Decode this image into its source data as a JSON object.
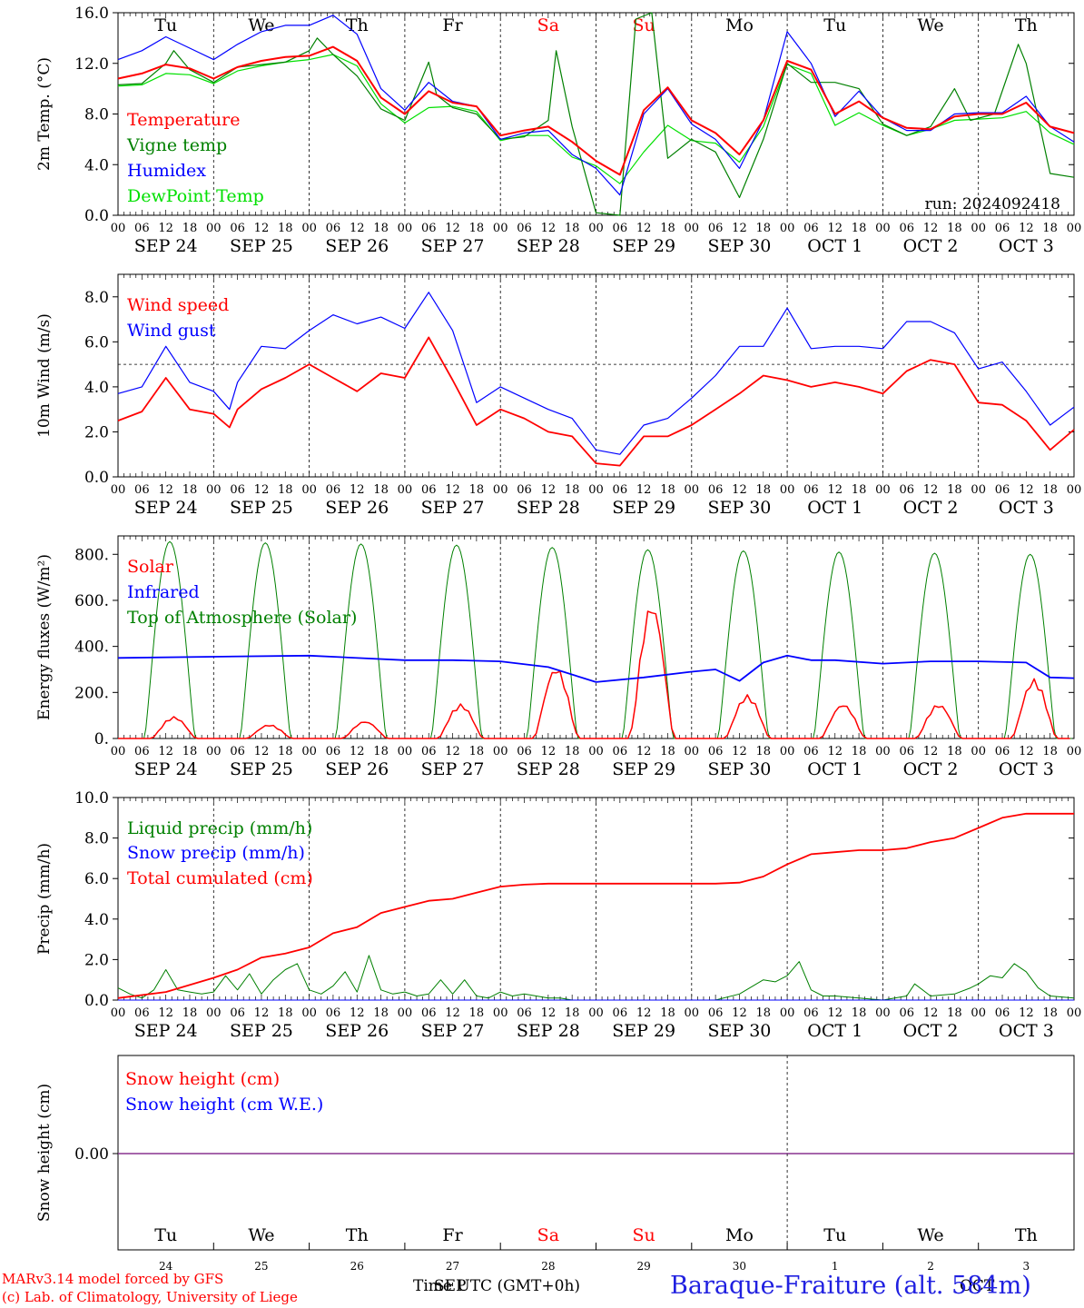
{
  "run_label": "run: 2024092418",
  "date_labels": [
    "SEP 24",
    "SEP 25",
    "SEP 26",
    "SEP 27",
    "SEP 28",
    "SEP 29",
    "SEP 30",
    "OCT  1",
    "OCT  2",
    "OCT  3"
  ],
  "hour_ticks": [
    "00",
    "06",
    "12",
    "18"
  ],
  "weekdays": [
    {
      "label": "Tu",
      "color": "#000000"
    },
    {
      "label": "We",
      "color": "#000000"
    },
    {
      "label": "Th",
      "color": "#000000"
    },
    {
      "label": "Fr",
      "color": "#000000"
    },
    {
      "label": "Sa",
      "color": "#ff0000"
    },
    {
      "label": "Su",
      "color": "#ff0000"
    },
    {
      "label": "Mo",
      "color": "#000000"
    },
    {
      "label": "Tu",
      "color": "#000000"
    },
    {
      "label": "We",
      "color": "#000000"
    },
    {
      "label": "Th",
      "color": "#000000"
    }
  ],
  "bottom_day_numbers": [
    "24",
    "25",
    "26",
    "27",
    "28",
    "29",
    "30",
    "1",
    "2",
    "3"
  ],
  "footer": {
    "credit_line1": "MARv3.14 model forced by GFS",
    "credit_line2": "(c) Lab. of Climatology, University of Liege",
    "xaxis_label": "Time UTC (GMT+0h)",
    "xaxis_month_left": "SEP",
    "xaxis_month_right": "OCT",
    "station": "Baraque-Fraiture (alt. 584m)"
  },
  "chart_data": [
    {
      "type": "line",
      "ylabel": "2m Temp. (°C)",
      "ylim": [
        0,
        16
      ],
      "yticks": [
        "0.0",
        "4.0",
        "8.0",
        "12.0",
        "16.0"
      ],
      "x_unit": "hours since SEP 24 00 UTC",
      "series": [
        {
          "name": "Temperature",
          "color": "#ff0000",
          "x": [
            0,
            6,
            12,
            18,
            24,
            30,
            36,
            42,
            48,
            54,
            60,
            66,
            72,
            78,
            84,
            90,
            96,
            102,
            108,
            114,
            120,
            126,
            132,
            138,
            144,
            150,
            156,
            162,
            168,
            174,
            180,
            186,
            192,
            198,
            204,
            210,
            216,
            222,
            228,
            234,
            240
          ],
          "y": [
            10.8,
            11.2,
            11.9,
            11.6,
            10.8,
            11.7,
            12.2,
            12.5,
            12.6,
            13.3,
            12.2,
            9.3,
            8.0,
            9.8,
            8.9,
            8.6,
            6.3,
            6.7,
            7.0,
            5.8,
            4.3,
            3.2,
            8.3,
            10.1,
            7.5,
            6.5,
            4.8,
            7.5,
            12.2,
            11.5,
            8.0,
            9.0,
            7.7,
            6.9,
            6.8,
            7.8,
            8.0,
            8.0,
            8.9,
            7.0,
            6.5
          ]
        },
        {
          "name": "Vigne temp",
          "color": "#008000",
          "x": [
            0,
            6,
            12,
            14,
            18,
            24,
            30,
            36,
            42,
            48,
            50,
            54,
            60,
            66,
            72,
            78,
            80,
            84,
            90,
            96,
            102,
            108,
            110,
            114,
            120,
            126,
            130,
            134,
            138,
            144,
            150,
            156,
            162,
            168,
            174,
            180,
            186,
            192,
            198,
            204,
            210,
            214,
            220,
            226,
            228,
            234,
            240
          ],
          "y": [
            10.3,
            10.4,
            12.0,
            13.0,
            11.5,
            10.5,
            11.7,
            11.9,
            12.1,
            13.0,
            14.0,
            12.7,
            11.0,
            8.4,
            7.5,
            12.1,
            9.5,
            8.5,
            8.0,
            6.0,
            6.2,
            7.5,
            13.0,
            7.0,
            0.2,
            0.0,
            15.5,
            16.0,
            4.5,
            6.0,
            5.0,
            1.4,
            6.0,
            12.0,
            10.5,
            10.5,
            10.0,
            7.2,
            6.3,
            7.0,
            10.0,
            7.5,
            8.0,
            13.5,
            12.0,
            3.3,
            3.0
          ]
        },
        {
          "name": "Humidex",
          "color": "#0000ff",
          "x": [
            0,
            6,
            12,
            18,
            24,
            30,
            36,
            42,
            48,
            54,
            60,
            66,
            72,
            78,
            84,
            90,
            96,
            102,
            108,
            114,
            120,
            126,
            132,
            138,
            144,
            150,
            156,
            162,
            168,
            174,
            180,
            186,
            192,
            198,
            204,
            210,
            216,
            222,
            228,
            234,
            240
          ],
          "y": [
            12.3,
            13.0,
            14.1,
            13.2,
            12.3,
            13.5,
            14.5,
            15.0,
            15.0,
            15.8,
            14.3,
            10.0,
            8.3,
            10.5,
            9.0,
            8.6,
            6.0,
            6.5,
            6.7,
            4.8,
            3.7,
            1.6,
            8.0,
            10.0,
            7.2,
            6.0,
            3.7,
            7.5,
            14.5,
            12.0,
            7.8,
            9.8,
            7.7,
            6.7,
            6.7,
            8.0,
            8.1,
            8.1,
            9.4,
            7.0,
            5.8
          ]
        },
        {
          "name": "DewPoint Temp",
          "color": "#00e000",
          "x": [
            0,
            6,
            12,
            18,
            24,
            30,
            36,
            42,
            48,
            54,
            60,
            66,
            72,
            78,
            84,
            90,
            96,
            102,
            108,
            114,
            120,
            126,
            132,
            138,
            144,
            150,
            156,
            162,
            168,
            174,
            180,
            186,
            192,
            198,
            204,
            210,
            216,
            222,
            228,
            234,
            240
          ],
          "y": [
            10.2,
            10.3,
            11.2,
            11.1,
            10.4,
            11.4,
            11.8,
            12.1,
            12.3,
            12.7,
            11.8,
            8.8,
            7.3,
            8.5,
            8.6,
            8.2,
            5.9,
            6.3,
            6.3,
            4.6,
            3.9,
            2.5,
            5.0,
            7.1,
            5.9,
            5.7,
            4.2,
            7.0,
            11.9,
            11.2,
            7.1,
            8.1,
            7.1,
            6.3,
            6.8,
            7.5,
            7.6,
            7.7,
            8.2,
            6.5,
            5.6
          ]
        }
      ],
      "show_run_label": true
    },
    {
      "type": "line",
      "ylabel": "10m Wind (m/s)",
      "ylim": [
        0,
        9
      ],
      "yticks": [
        "0.0",
        "2.0",
        "4.0",
        "6.0",
        "8.0"
      ],
      "reference_line": 5,
      "series": [
        {
          "name": "Wind speed",
          "color": "#ff0000",
          "x": [
            0,
            6,
            12,
            18,
            24,
            28,
            30,
            36,
            42,
            48,
            54,
            60,
            66,
            72,
            78,
            84,
            90,
            96,
            102,
            108,
            114,
            120,
            126,
            132,
            138,
            144,
            150,
            156,
            162,
            168,
            174,
            180,
            186,
            192,
            198,
            204,
            210,
            216,
            222,
            228,
            234,
            240
          ],
          "y": [
            2.5,
            2.9,
            4.4,
            3.0,
            2.8,
            2.2,
            3.0,
            3.9,
            4.4,
            5.0,
            4.4,
            3.8,
            4.6,
            4.4,
            6.2,
            4.3,
            2.3,
            3.0,
            2.6,
            2.0,
            1.8,
            0.6,
            0.5,
            1.8,
            1.8,
            2.3,
            3.0,
            3.7,
            4.5,
            4.3,
            4.0,
            4.2,
            4.0,
            3.7,
            4.7,
            5.2,
            5.0,
            3.3,
            3.2,
            2.5,
            1.2,
            2.1
          ]
        },
        {
          "name": "Wind gust",
          "color": "#0000ff",
          "x": [
            0,
            6,
            12,
            18,
            24,
            28,
            30,
            36,
            42,
            48,
            54,
            60,
            66,
            72,
            78,
            84,
            90,
            96,
            102,
            108,
            114,
            120,
            126,
            132,
            138,
            144,
            150,
            156,
            162,
            168,
            174,
            180,
            186,
            192,
            198,
            204,
            210,
            216,
            222,
            228,
            234,
            240
          ],
          "y": [
            3.7,
            4.0,
            5.8,
            4.2,
            3.8,
            3.0,
            4.2,
            5.8,
            5.7,
            6.5,
            7.2,
            6.8,
            7.1,
            6.6,
            8.2,
            6.5,
            3.3,
            4.0,
            3.5,
            3.0,
            2.6,
            1.2,
            1.0,
            2.3,
            2.6,
            3.5,
            4.5,
            5.8,
            5.8,
            7.5,
            5.7,
            5.8,
            5.8,
            5.7,
            6.9,
            6.9,
            6.4,
            4.8,
            5.1,
            3.8,
            2.3,
            3.1
          ]
        }
      ]
    },
    {
      "type": "line",
      "ylabel": "Energy fluxes (W/m²)",
      "ylim": [
        0,
        880
      ],
      "yticks": [
        "0.",
        "200.",
        "400.",
        "600.",
        "800."
      ],
      "series": [
        {
          "name": "Solar",
          "color": "#ff0000",
          "daily_peak_hour": 14,
          "daily_peaks": [
            95,
            60,
            75,
            150,
            310,
            590,
            190,
            150,
            150,
            260
          ],
          "peak_values_in_order": [
            95,
            60,
            75,
            150,
            310,
            590,
            190,
            150,
            150,
            260
          ]
        },
        {
          "name": "Infrared",
          "color": "#0000ff",
          "x": [
            0,
            24,
            48,
            72,
            84,
            96,
            108,
            120,
            132,
            144,
            150,
            156,
            162,
            168,
            174,
            180,
            192,
            204,
            216,
            228,
            234,
            240
          ],
          "y": [
            350,
            355,
            360,
            340,
            340,
            335,
            310,
            245,
            265,
            290,
            300,
            250,
            330,
            360,
            340,
            340,
            325,
            335,
            335,
            330,
            265,
            262
          ]
        },
        {
          "name": "Top of Atmosphere (Solar)",
          "color": "#008000",
          "daily_peak_hour": 13,
          "daily_peaks": [
            855,
            850,
            845,
            840,
            830,
            820,
            815,
            810,
            805,
            800
          ]
        }
      ]
    },
    {
      "type": "line",
      "ylabel": "Precip (mm/h)",
      "ylim": [
        0,
        10
      ],
      "yticks": [
        "0.0",
        "2.0",
        "4.0",
        "6.0",
        "8.0",
        "10.0"
      ],
      "series": [
        {
          "name": "Liquid precip (mm/h)",
          "color": "#008000",
          "x": [
            0,
            3,
            6,
            9,
            12,
            15,
            18,
            21,
            24,
            27,
            30,
            33,
            36,
            39,
            42,
            45,
            48,
            51,
            54,
            57,
            60,
            63,
            66,
            69,
            72,
            75,
            78,
            81,
            84,
            87,
            90,
            93,
            96,
            99,
            102,
            105,
            108,
            111,
            114,
            120,
            150,
            156,
            162,
            165,
            168,
            171,
            174,
            177,
            180,
            186,
            192,
            198,
            200,
            204,
            210,
            214,
            216,
            219,
            222,
            225,
            228,
            231,
            234,
            240
          ],
          "y": [
            0.6,
            0.3,
            0.1,
            0.5,
            1.5,
            0.5,
            0.4,
            0.3,
            0.4,
            1.2,
            0.5,
            1.3,
            0.3,
            1.0,
            1.5,
            1.8,
            0.5,
            0.3,
            0.7,
            1.4,
            0.4,
            2.2,
            0.5,
            0.3,
            0.4,
            0.2,
            0.3,
            1.0,
            0.3,
            1.0,
            0.2,
            0.1,
            0.4,
            0.2,
            0.3,
            0.2,
            0.1,
            0.1,
            0.0,
            0.0,
            0.0,
            0.3,
            1.0,
            0.9,
            1.2,
            1.9,
            0.5,
            0.2,
            0.2,
            0.1,
            0.0,
            0.2,
            0.8,
            0.2,
            0.3,
            0.6,
            0.8,
            1.2,
            1.1,
            1.8,
            1.4,
            0.6,
            0.2,
            0.1
          ]
        },
        {
          "name": "Snow precip (mm/h)",
          "color": "#0000ff",
          "x": [
            0,
            240
          ],
          "y": [
            0,
            0
          ]
        },
        {
          "name": "Total cumulated (cm)",
          "color": "#ff0000",
          "x": [
            0,
            12,
            24,
            30,
            36,
            42,
            48,
            54,
            60,
            66,
            72,
            78,
            84,
            90,
            96,
            102,
            108,
            120,
            132,
            144,
            150,
            156,
            162,
            168,
            174,
            180,
            186,
            192,
            198,
            204,
            210,
            216,
            222,
            228,
            234,
            240
          ],
          "y": [
            0.1,
            0.4,
            1.1,
            1.5,
            2.1,
            2.3,
            2.6,
            3.3,
            3.6,
            4.3,
            4.6,
            4.9,
            5.0,
            5.3,
            5.6,
            5.7,
            5.75,
            5.75,
            5.75,
            5.75,
            5.75,
            5.8,
            6.1,
            6.7,
            7.2,
            7.3,
            7.4,
            7.4,
            7.5,
            7.8,
            8.0,
            8.5,
            9.0,
            9.2,
            9.2,
            9.2
          ]
        }
      ]
    },
    {
      "type": "line",
      "ylabel": "Snow height (cm)",
      "yticks": [
        "0.00"
      ],
      "series": [
        {
          "name": "Snow height (cm)",
          "color": "#ff0000",
          "x": [
            0,
            240
          ],
          "y": [
            0,
            0
          ]
        },
        {
          "name": "Snow height (cm W.E.)",
          "color": "#0000ff",
          "x": [
            0,
            240
          ],
          "y": [
            0,
            0
          ]
        }
      ]
    }
  ]
}
